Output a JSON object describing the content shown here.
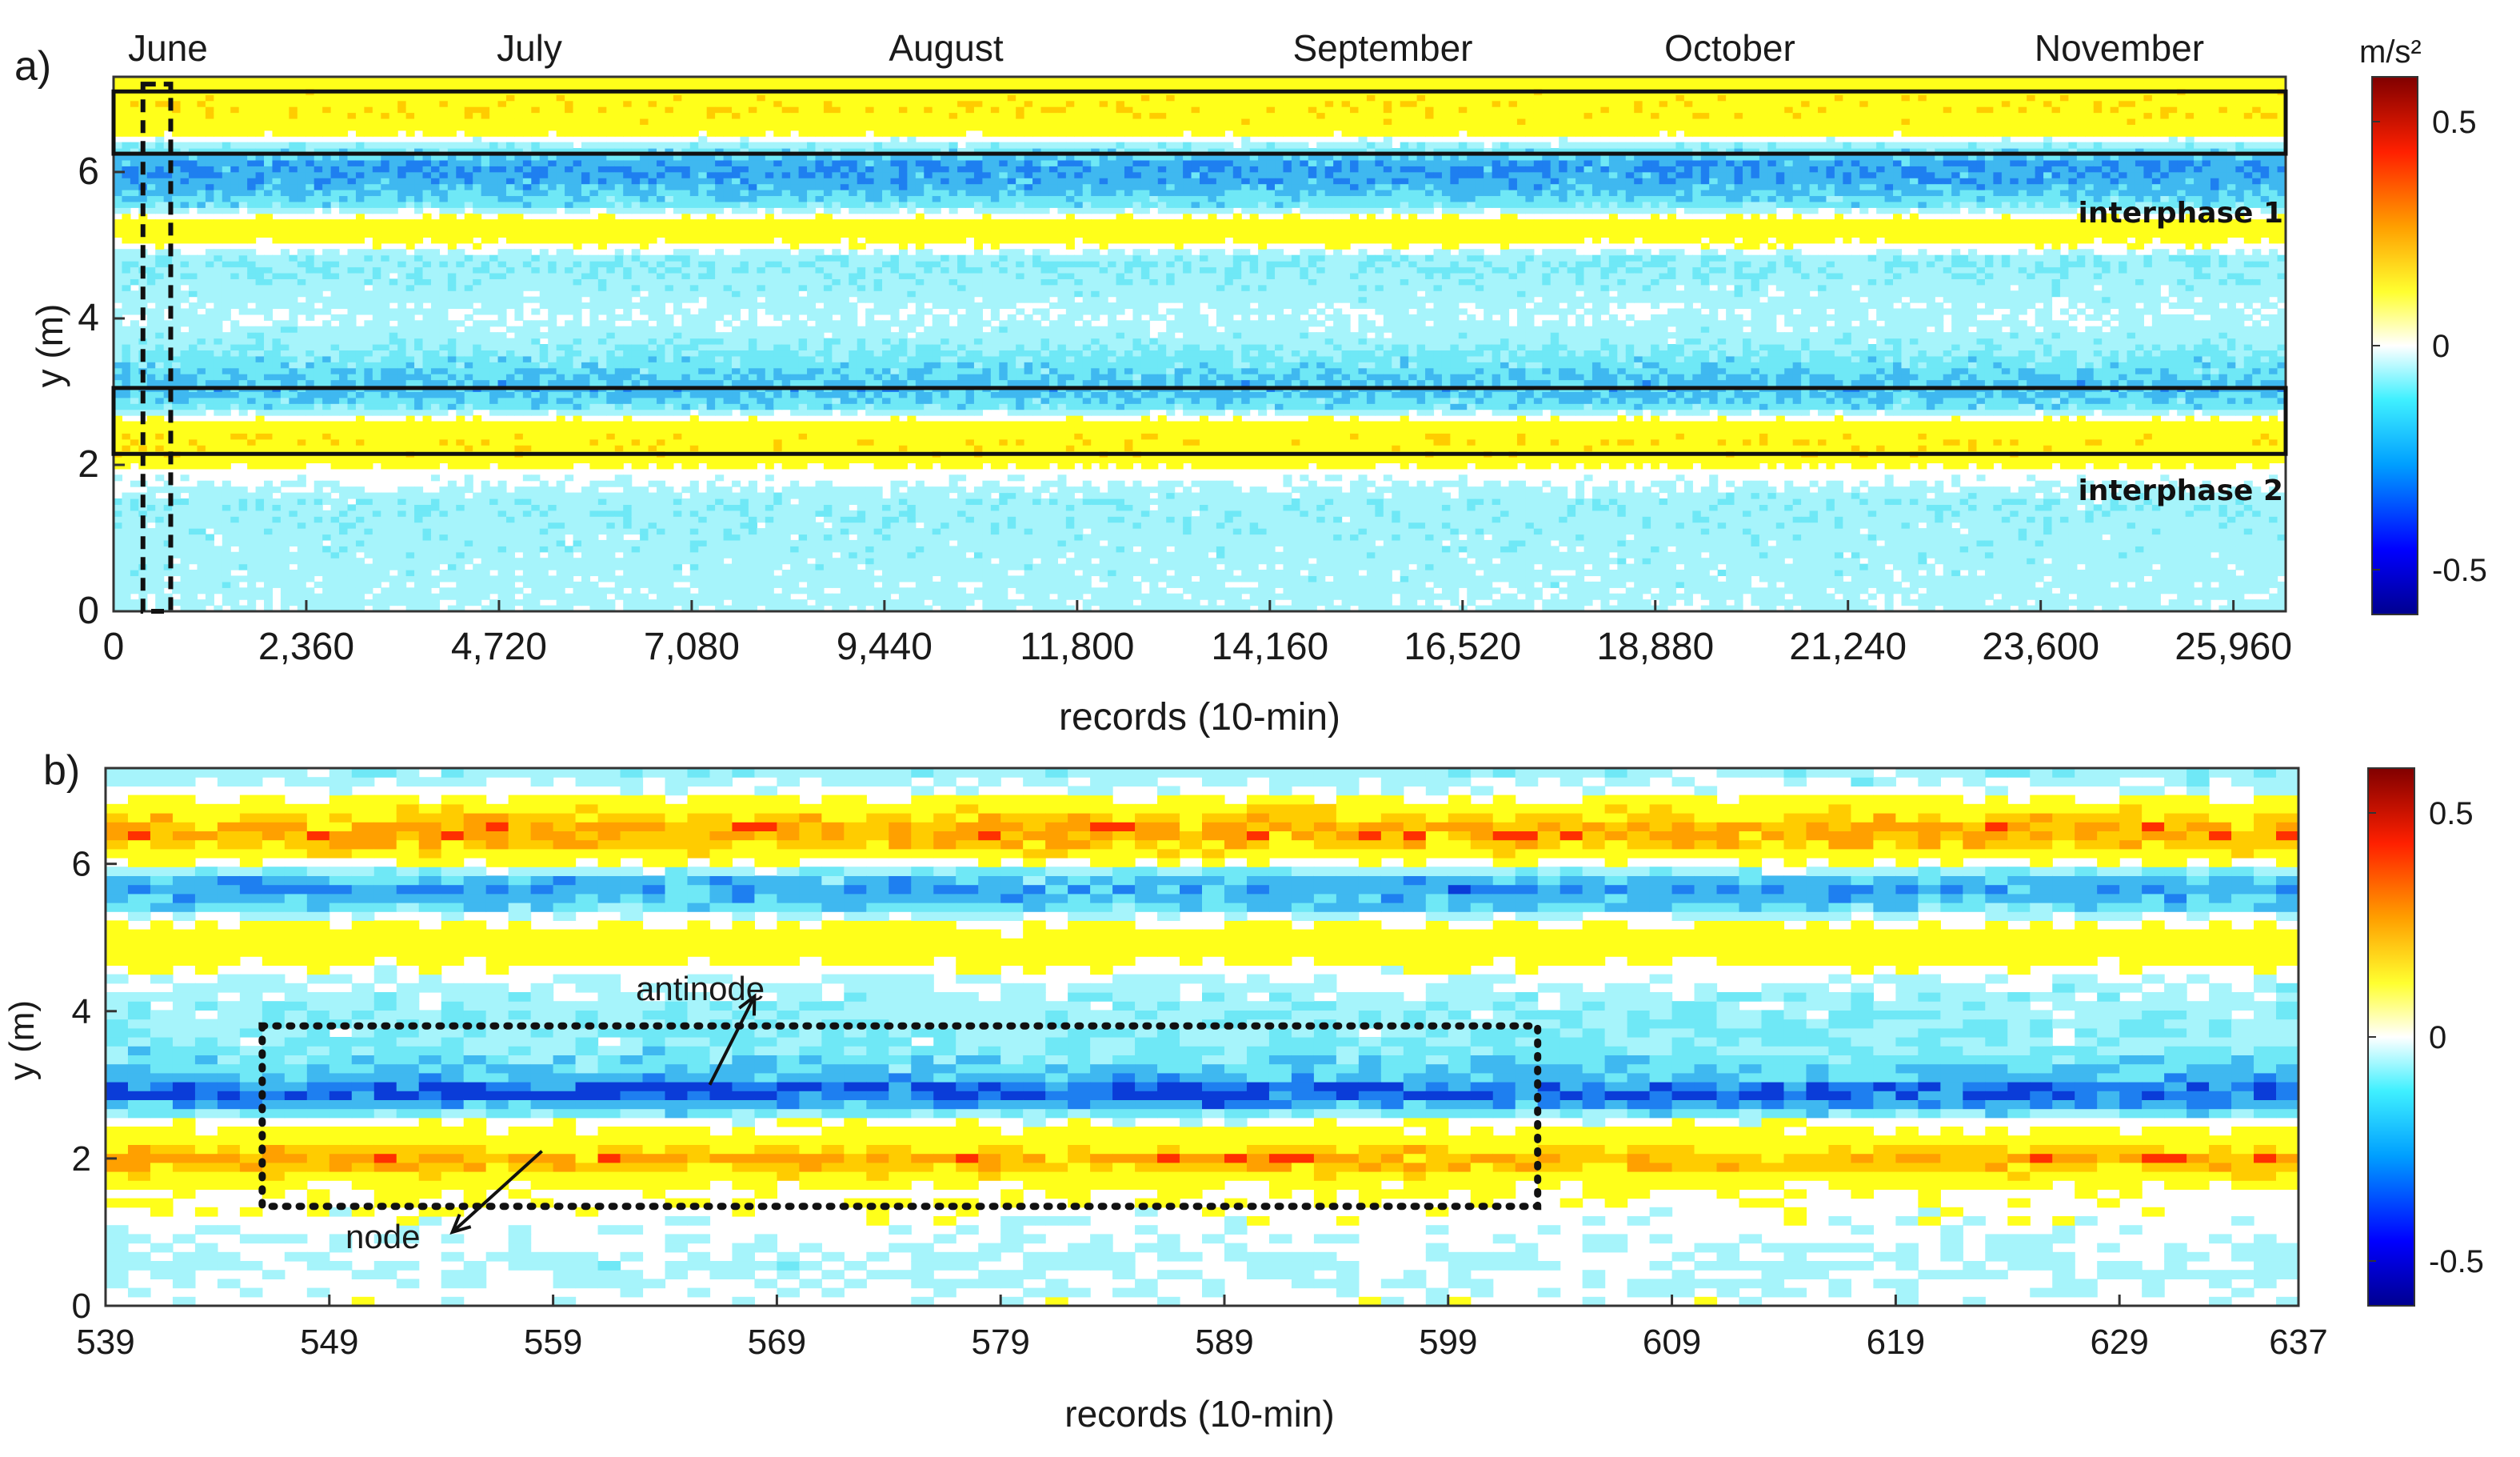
{
  "chart_data": [
    {
      "type": "heatmap",
      "panel_label": "a)",
      "months": [
        "June",
        "July",
        "August",
        "September",
        "October",
        "November"
      ],
      "xlabel": "records (10-min)",
      "ylabel": "y (m)",
      "xlim": [
        0,
        26600
      ],
      "ylim": [
        0,
        7.3
      ],
      "x_ticks": [
        "0",
        "2,360",
        "4,720",
        "7,080",
        "9,440",
        "11,800",
        "14,160",
        "16,520",
        "18,880",
        "21,240",
        "23,600",
        "25,960"
      ],
      "x_tick_values": [
        0,
        2360,
        4720,
        7080,
        9440,
        11800,
        14160,
        16520,
        18880,
        21240,
        23600,
        25960
      ],
      "y_ticks": [
        0,
        2,
        4,
        6
      ],
      "colorbar": {
        "unit": "m/s²",
        "ticks": [
          "0.5",
          "0",
          "-0.5"
        ],
        "tick_values": [
          0.5,
          0,
          -0.5
        ],
        "range": [
          -0.6,
          0.6
        ]
      },
      "annotations": [
        "interphase 1",
        "interphase 2"
      ],
      "boxes": [
        {
          "name": "interphase 1",
          "x": [
            0,
            26600
          ],
          "y": [
            6.25,
            7.1
          ]
        },
        {
          "name": "interphase 2",
          "x": [
            0,
            26600
          ],
          "y": [
            2.15,
            3.05
          ]
        }
      ],
      "dashed_box": {
        "x": [
          360,
          700
        ],
        "y": [
          0,
          7.2
        ]
      },
      "y_profile": [
        {
          "y": 0.0,
          "value": -0.05
        },
        {
          "y": 0.5,
          "value": -0.06
        },
        {
          "y": 1.0,
          "value": -0.07
        },
        {
          "y": 1.5,
          "value": -0.08
        },
        {
          "y": 1.9,
          "value": 0.0
        },
        {
          "y": 2.15,
          "value": 0.14
        },
        {
          "y": 2.35,
          "value": 0.16
        },
        {
          "y": 2.55,
          "value": 0.09
        },
        {
          "y": 2.8,
          "value": -0.13
        },
        {
          "y": 3.05,
          "value": -0.2
        },
        {
          "y": 3.3,
          "value": -0.15
        },
        {
          "y": 3.6,
          "value": -0.09
        },
        {
          "y": 4.0,
          "value": -0.04
        },
        {
          "y": 4.4,
          "value": -0.07
        },
        {
          "y": 4.8,
          "value": -0.1
        },
        {
          "y": 5.1,
          "value": 0.08
        },
        {
          "y": 5.3,
          "value": 0.1
        },
        {
          "y": 5.55,
          "value": -0.12
        },
        {
          "y": 5.85,
          "value": -0.22
        },
        {
          "y": 6.1,
          "value": -0.25
        },
        {
          "y": 6.4,
          "value": -0.05
        },
        {
          "y": 6.6,
          "value": 0.12
        },
        {
          "y": 6.85,
          "value": 0.16
        },
        {
          "y": 7.2,
          "value": 0.12
        }
      ]
    },
    {
      "type": "heatmap",
      "panel_label": "b)",
      "xlabel": "records (10-min)",
      "ylabel": "y (m)",
      "xlim": [
        539,
        637
      ],
      "ylim": [
        0,
        7.3
      ],
      "x_ticks": [
        "539",
        "549",
        "559",
        "569",
        "579",
        "589",
        "599",
        "609",
        "619",
        "629",
        "637"
      ],
      "x_tick_values": [
        539,
        549,
        559,
        569,
        579,
        589,
        599,
        609,
        619,
        629,
        637
      ],
      "y_ticks": [
        0,
        2,
        4,
        6
      ],
      "colorbar": {
        "ticks": [
          "0.5",
          "0",
          "-0.5"
        ],
        "tick_values": [
          0.5,
          0,
          -0.5
        ],
        "range": [
          -0.6,
          0.6
        ]
      },
      "annotations": [
        "antinode",
        "node"
      ],
      "arrows": [
        {
          "label": "antinode",
          "from": [
            566,
            3.0
          ],
          "to": [
            568,
            4.2
          ]
        },
        {
          "label": "node",
          "from": [
            558.5,
            2.1
          ],
          "to": [
            554.5,
            1.0
          ]
        }
      ],
      "dashed_box": {
        "x": [
          546,
          603
        ],
        "y": [
          1.35,
          3.8
        ]
      },
      "y_profile": [
        {
          "y": 0.0,
          "value": 0.0
        },
        {
          "y": 0.5,
          "value": -0.05
        },
        {
          "y": 1.2,
          "value": 0.0
        },
        {
          "y": 1.6,
          "value": 0.03
        },
        {
          "y": 1.85,
          "value": 0.2
        },
        {
          "y": 2.0,
          "value": 0.3
        },
        {
          "y": 2.2,
          "value": 0.14
        },
        {
          "y": 2.5,
          "value": 0.0
        },
        {
          "y": 2.75,
          "value": -0.25
        },
        {
          "y": 2.9,
          "value": -0.38
        },
        {
          "y": 3.1,
          "value": -0.2
        },
        {
          "y": 3.5,
          "value": -0.1
        },
        {
          "y": 4.0,
          "value": -0.09
        },
        {
          "y": 4.5,
          "value": -0.02
        },
        {
          "y": 4.75,
          "value": 0.1
        },
        {
          "y": 5.0,
          "value": 0.12
        },
        {
          "y": 5.25,
          "value": 0.0
        },
        {
          "y": 5.45,
          "value": -0.18
        },
        {
          "y": 5.7,
          "value": -0.26
        },
        {
          "y": 5.95,
          "value": -0.05
        },
        {
          "y": 6.2,
          "value": 0.2
        },
        {
          "y": 6.45,
          "value": 0.32
        },
        {
          "y": 6.7,
          "value": 0.18
        },
        {
          "y": 6.95,
          "value": 0.0
        },
        {
          "y": 7.2,
          "value": -0.08
        }
      ]
    }
  ]
}
